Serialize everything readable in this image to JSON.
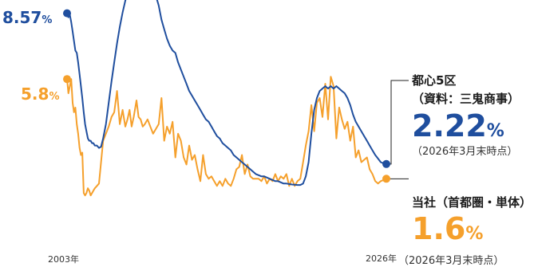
{
  "colors": {
    "blue": "#1f4e9e",
    "orange": "#f5a02c"
  },
  "chart_data": {
    "type": "line",
    "title": "",
    "xlabel": "",
    "ylabel": "",
    "x_tick_labels": [
      "2003年",
      "2026年"
    ],
    "x": [
      2003.0,
      2003.1,
      2003.2,
      2003.3,
      2003.4,
      2003.5,
      2003.6,
      2003.7,
      2003.8,
      2003.9,
      2004.0,
      2004.1,
      2004.2,
      2004.3,
      2004.4,
      2004.5,
      2004.6,
      2004.7,
      2004.8,
      2004.9,
      2005.0,
      2005.15,
      2005.3,
      2005.45,
      2005.6,
      2005.8,
      2006.0,
      2006.2,
      2006.4,
      2006.6,
      2006.8,
      2007.0,
      2007.2,
      2007.35,
      2007.5,
      2007.65,
      2007.8,
      2008.0,
      2008.15,
      2008.3,
      2008.45,
      2008.6,
      2008.8,
      2009.0,
      2009.2,
      2009.4,
      2009.6,
      2009.8,
      2010.0,
      2010.2,
      2010.4,
      2010.6,
      2010.8,
      2011.0,
      2011.2,
      2011.4,
      2011.6,
      2011.8,
      2012.0,
      2012.2,
      2012.4,
      2012.6,
      2012.8,
      2013.0,
      2013.2,
      2013.4,
      2013.6,
      2013.8,
      2014.0,
      2014.2,
      2014.4,
      2014.6,
      2014.8,
      2015.0,
      2015.2,
      2015.4,
      2015.6,
      2015.8,
      2016.0,
      2016.2,
      2016.4,
      2016.6,
      2016.8,
      2017.0,
      2017.2,
      2017.4,
      2017.6,
      2017.8,
      2018.0,
      2018.2,
      2018.4,
      2018.6,
      2018.8,
      2019.0,
      2019.2,
      2019.4,
      2019.6,
      2019.8,
      2020.0,
      2020.2,
      2020.4,
      2020.6,
      2020.8,
      2021.0,
      2021.2,
      2021.4,
      2021.6,
      2021.8,
      2022.0,
      2022.2,
      2022.4,
      2022.6,
      2022.8,
      2023.0,
      2023.2,
      2023.4,
      2023.6,
      2023.8,
      2024.0,
      2024.2,
      2024.4,
      2024.6,
      2024.8,
      2025.0,
      2025.2,
      2025.4,
      2025.6,
      2025.8,
      2026.0
    ],
    "series": [
      {
        "name": "都心5区",
        "color": "#1f4e9e",
        "values": [
          8.57,
          8.4,
          8.5,
          8.2,
          7.8,
          7.4,
          7.0,
          6.9,
          6.5,
          6.0,
          5.5,
          5.0,
          4.4,
          3.9,
          3.6,
          3.3,
          3.2,
          3.2,
          3.1,
          3.1,
          3.0,
          3.0,
          2.9,
          2.95,
          3.3,
          3.9,
          4.8,
          5.7,
          6.5,
          7.3,
          8.0,
          8.6,
          9.1,
          9.4,
          9.6,
          9.8,
          9.9,
          9.85,
          9.9,
          9.7,
          9.9,
          9.8,
          9.9,
          9.8,
          9.7,
          9.3,
          8.9,
          8.3,
          7.9,
          7.5,
          7.2,
          7.0,
          6.9,
          6.5,
          6.2,
          5.9,
          5.6,
          5.3,
          5.1,
          4.9,
          4.7,
          4.5,
          4.3,
          4.1,
          4.0,
          3.8,
          3.6,
          3.4,
          3.3,
          3.1,
          3.0,
          2.9,
          2.8,
          2.6,
          2.5,
          2.4,
          2.3,
          2.2,
          2.1,
          2.0,
          1.9,
          1.8,
          1.75,
          1.7,
          1.7,
          1.65,
          1.6,
          1.55,
          1.5,
          1.5,
          1.45,
          1.4,
          1.4,
          1.38,
          1.36,
          1.35,
          1.34,
          1.34,
          1.4,
          1.7,
          2.3,
          3.5,
          4.5,
          5.0,
          5.3,
          5.4,
          5.5,
          5.4,
          5.5,
          5.4,
          5.5,
          5.4,
          5.3,
          5.2,
          5.0,
          4.7,
          4.3,
          4.0,
          3.8,
          3.6,
          3.4,
          3.2,
          3.0,
          2.8,
          2.6,
          2.45,
          2.3,
          2.25,
          2.22
        ]
      },
      {
        "name": "当社（首都圏・単体）",
        "color": "#f5a02c",
        "values": [
          5.8,
          5.2,
          5.5,
          5.8,
          4.8,
          4.4,
          4.6,
          3.9,
          3.5,
          2.9,
          2.6,
          2.7,
          1.0,
          0.9,
          1.0,
          1.2,
          1.1,
          0.9,
          1.0,
          1.1,
          1.2,
          1.3,
          1.4,
          2.3,
          3.2,
          3.5,
          3.8,
          4.2,
          4.4,
          5.3,
          3.9,
          4.5,
          3.8,
          4.1,
          4.5,
          3.8,
          4.2,
          4.9,
          4.2,
          4.1,
          3.8,
          3.9,
          4.1,
          3.8,
          3.5,
          3.7,
          3.9,
          5.0,
          3.2,
          3.8,
          3.5,
          4.0,
          2.5,
          3.5,
          3.2,
          2.5,
          2.2,
          3.0,
          2.4,
          2.6,
          2.0,
          1.5,
          2.6,
          1.8,
          1.6,
          1.7,
          1.5,
          1.3,
          1.5,
          1.3,
          1.6,
          1.4,
          1.3,
          1.6,
          2.0,
          2.1,
          2.6,
          1.8,
          2.2,
          1.7,
          1.6,
          1.6,
          1.6,
          1.5,
          1.7,
          1.4,
          1.6,
          1.5,
          1.8,
          1.5,
          1.7,
          1.6,
          1.8,
          1.3,
          1.6,
          1.3,
          1.5,
          1.6,
          2.3,
          3.0,
          3.6,
          4.7,
          3.6,
          4.8,
          5.0,
          4.2,
          5.6,
          4.1,
          5.9,
          5.5,
          3.3,
          4.6,
          4.1,
          3.7,
          4.0,
          3.2,
          3.8,
          2.5,
          2.8,
          2.3,
          2.4,
          2.5,
          2.0,
          1.8,
          1.5,
          1.4,
          1.5,
          1.55,
          1.6
        ]
      }
    ],
    "annotations": [
      {
        "series": 0,
        "position": "start",
        "value": "8.57",
        "unit": "%"
      },
      {
        "series": 1,
        "position": "start",
        "value": "5.8",
        "unit": "%"
      },
      {
        "series": 0,
        "position": "end",
        "title_lines": [
          "都心5区",
          "（資料：三鬼商事）"
        ],
        "value": "2.22",
        "unit": "%",
        "note": "（2026年3月末時点）"
      },
      {
        "series": 1,
        "position": "end",
        "title_lines": [
          "当社（首都圏・単体）"
        ],
        "value": "1.6",
        "unit": "%",
        "note": "（2026年3月末時点）"
      }
    ],
    "ylim": [
      0,
      10
    ],
    "grid": false,
    "legend": "none"
  }
}
